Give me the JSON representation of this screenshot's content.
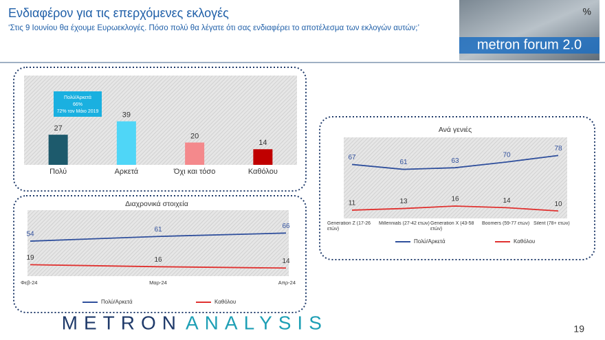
{
  "header": {
    "title": "Ενδιαφέρον για τις επερχόμενες εκλογές",
    "subtitle": "‘Στις 9 Ιουνίου θα έχουμε Ευρωεκλογές. Πόσο πολύ θα λέγατε ότι σας ενδιαφέρει το αποτέλεσμα των εκλογών αυτών;’",
    "logo": "metron forum 2.0",
    "unit": "%"
  },
  "chart_data": [
    {
      "type": "bar",
      "categories": [
        "Πολύ",
        "Αρκετά",
        "Όχι και τόσο",
        "Καθόλου"
      ],
      "values": [
        27,
        39,
        20,
        14
      ],
      "colors": [
        "#1d5a6c",
        "#4fd6f7",
        "#f4898c",
        "#c00000"
      ],
      "ylim": [
        0,
        80
      ],
      "annotation": [
        "Πολύ/Αρκετά",
        "66%",
        "72% τον Μάιο 2019"
      ]
    },
    {
      "type": "line",
      "title": "Διαχρονικά στοιχεία",
      "categories": [
        "Φεβ-24",
        "Μαρ-24",
        "Απρ-24"
      ],
      "ylim": [
        0,
        100
      ],
      "series": [
        {
          "name": "Πολύ/Αρκετά",
          "color": "#2f4f9c",
          "values": [
            54,
            61,
            66
          ]
        },
        {
          "name": "Καθόλου",
          "color": "#e0302e",
          "values": [
            19,
            16,
            14
          ]
        }
      ]
    },
    {
      "type": "line",
      "title": "Ανά γενιές",
      "categories": [
        "Generation Z (17-26 ετών)",
        "Millennials (27-42 ετών)",
        "Generation X (43-58 ετών)",
        "Boomers (59-77 ετών)",
        "Silent (78+ ετών)"
      ],
      "ylim": [
        0,
        80
      ],
      "series": [
        {
          "name": "Πολύ/Αρκετά",
          "color": "#2f4f9c",
          "values": [
            67,
            61,
            63,
            70,
            78
          ]
        },
        {
          "name": "Καθόλου",
          "color": "#e0302e",
          "values": [
            11,
            13,
            16,
            14,
            10
          ]
        }
      ]
    }
  ],
  "footer": {
    "brand_left": "METRON",
    "brand_right": "ANALYSIS",
    "page": "19"
  }
}
